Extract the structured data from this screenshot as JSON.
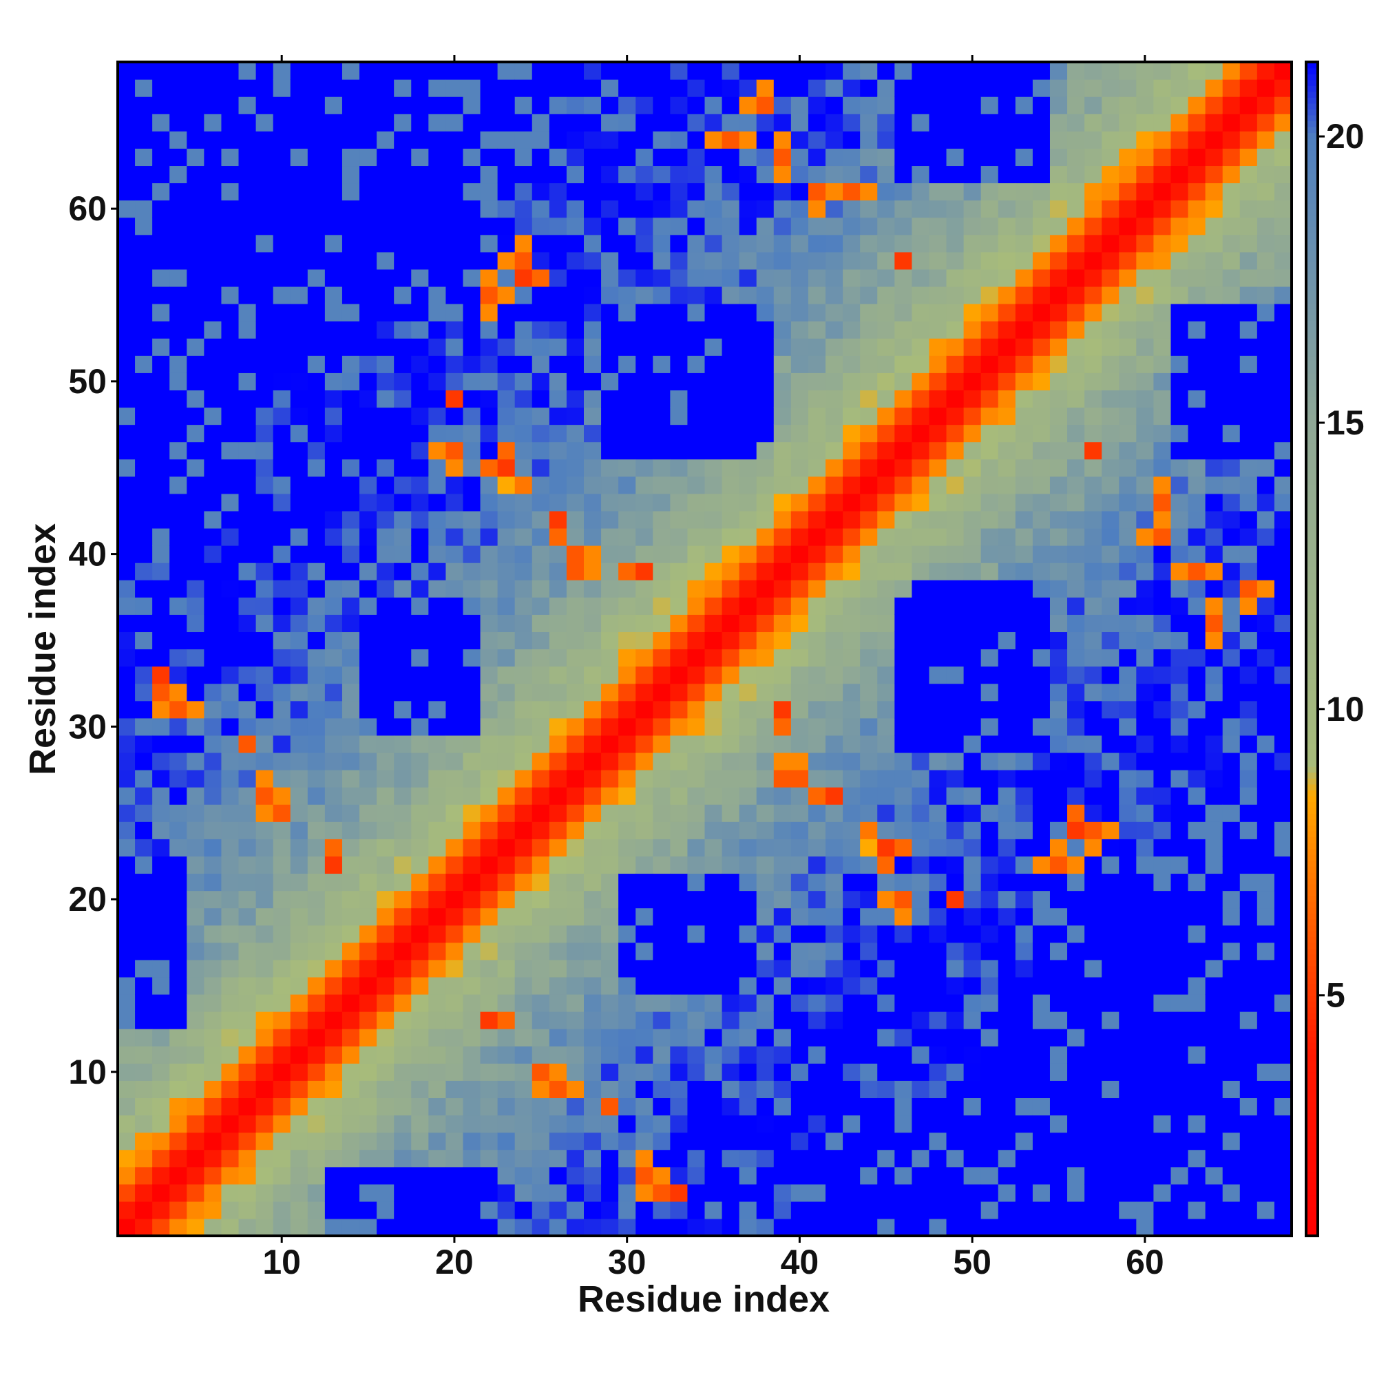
{
  "chart_data": {
    "type": "heatmap",
    "title": "",
    "xlabel": "Residue index",
    "ylabel": "Residue index",
    "n_residues": 68,
    "x_range": [
      1,
      68
    ],
    "y_range": [
      1,
      68
    ],
    "x_ticks": [
      10,
      20,
      30,
      40,
      50,
      60
    ],
    "y_ticks": [
      10,
      20,
      30,
      40,
      50,
      60
    ],
    "x_tick_labels": [
      "10",
      "20",
      "30",
      "40",
      "50",
      "60"
    ],
    "y_tick_labels": [
      "10",
      "20",
      "30",
      "40",
      "50",
      "60"
    ],
    "colorbar": {
      "range": [
        0.8,
        21.3
      ],
      "ticks": [
        5,
        10,
        15,
        20
      ],
      "tick_labels": [
        "5",
        "10",
        "15",
        "20"
      ],
      "stops": [
        {
          "value": 0.8,
          "color": "#ff0000"
        },
        {
          "value": 4.0,
          "color": "#ff1a00"
        },
        {
          "value": 6.5,
          "color": "#ff6600"
        },
        {
          "value": 8.5,
          "color": "#ffaa00"
        },
        {
          "value": 9.0,
          "color": "#a8bc7a"
        },
        {
          "value": 15.0,
          "color": "#8fa896"
        },
        {
          "value": 20.0,
          "color": "#4f7fc0"
        },
        {
          "value": 21.3,
          "color": "#0000ff"
        }
      ]
    },
    "description_of_values": "Symmetric residue-residue distance map; values along the diagonal are near 1 (red), increasing away from the diagonal through orange and green to blue (>=21).",
    "diagonal_profile": [
      {
        "offset": 0,
        "value": 1.0
      },
      {
        "offset": 1,
        "value": 3.8
      },
      {
        "offset": 2,
        "value": 5.5
      },
      {
        "offset": 3,
        "value": 7.5
      },
      {
        "offset": 4,
        "value": 9.5
      },
      {
        "offset": 6,
        "value": 11.5
      },
      {
        "offset": 8,
        "value": 13.5
      },
      {
        "offset": 11,
        "value": 16.0
      },
      {
        "offset": 15,
        "value": 18.0
      },
      {
        "offset": 22,
        "value": 20.0
      },
      {
        "offset": 30,
        "value": 21.3
      }
    ],
    "blue_regions": [
      {
        "x": [
          1,
          14
        ],
        "y": [
          51,
          68
        ]
      },
      {
        "x": [
          1,
          5
        ],
        "y": [
          40,
          51
        ]
      },
      {
        "x": [
          15,
          20
        ],
        "y": [
          58,
          68
        ]
      },
      {
        "x": [
          21,
          25
        ],
        "y": [
          62,
          68
        ]
      },
      {
        "x": [
          16,
          20
        ],
        "y": [
          30,
          37
        ]
      },
      {
        "x": [
          29,
          37
        ],
        "y": [
          46,
          54
        ]
      },
      {
        "x": [
          49,
          54
        ],
        "y": [
          62,
          68
        ]
      },
      {
        "x": [
          47,
          53
        ],
        "y": [
          29,
          38
        ]
      },
      {
        "x": [
          30,
          36
        ],
        "y": [
          15,
          21
        ]
      },
      {
        "x": [
          54,
          68
        ],
        "y": [
          1,
          22
        ]
      },
      {
        "x": [
          42,
          68
        ],
        "y": [
          1,
          8
        ]
      },
      {
        "x": [
          62,
          68
        ],
        "y": [
          46,
          54
        ]
      },
      {
        "x": [
          14,
          20
        ],
        "y": [
          1,
          4
        ]
      },
      {
        "x": [
          1,
          4
        ],
        "y": [
          13,
          22
        ]
      }
    ],
    "close_contacts": [
      {
        "x": 22,
        "y": 55,
        "value": 6
      },
      {
        "x": 24,
        "y": 56,
        "value": 5
      },
      {
        "x": 38,
        "y": 66,
        "value": 6
      },
      {
        "x": 39,
        "y": 63,
        "value": 6
      },
      {
        "x": 43,
        "y": 61,
        "value": 6
      },
      {
        "x": 46,
        "y": 57,
        "value": 5
      },
      {
        "x": 20,
        "y": 46,
        "value": 6
      },
      {
        "x": 24,
        "y": 44,
        "value": 7
      },
      {
        "x": 27,
        "y": 40,
        "value": 6
      },
      {
        "x": 31,
        "y": 39,
        "value": 5
      },
      {
        "x": 39,
        "y": 27,
        "value": 6
      },
      {
        "x": 42,
        "y": 26,
        "value": 5
      },
      {
        "x": 45,
        "y": 23,
        "value": 5
      },
      {
        "x": 49,
        "y": 20,
        "value": 5
      },
      {
        "x": 57,
        "y": 24,
        "value": 6
      },
      {
        "x": 61,
        "y": 41,
        "value": 6
      },
      {
        "x": 64,
        "y": 36,
        "value": 6
      },
      {
        "x": 26,
        "y": 9,
        "value": 6
      },
      {
        "x": 31,
        "y": 4,
        "value": 6
      },
      {
        "x": 33,
        "y": 3,
        "value": 5
      },
      {
        "x": 3,
        "y": 32,
        "value": 6
      },
      {
        "x": 8,
        "y": 29,
        "value": 6
      },
      {
        "x": 10,
        "y": 25,
        "value": 6
      },
      {
        "x": 13,
        "y": 22,
        "value": 5
      }
    ]
  }
}
